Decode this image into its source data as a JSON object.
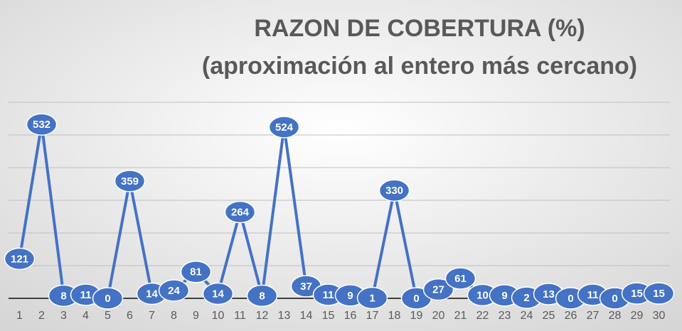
{
  "chart_data": {
    "type": "line",
    "title": "RAZON DE COBERTURA (%)",
    "subtitle": "(aproximación al entero más cercano)",
    "categories": [
      "1",
      "2",
      "3",
      "4",
      "5",
      "6",
      "7",
      "8",
      "9",
      "10",
      "11",
      "12",
      "13",
      "14",
      "15",
      "16",
      "17",
      "18",
      "19",
      "20",
      "21",
      "22",
      "23",
      "24",
      "25",
      "26",
      "27",
      "28",
      "29",
      "30"
    ],
    "series": [
      {
        "name": "Razon de cobertura",
        "color": "#4472c4",
        "values": [
          121,
          532,
          8,
          11,
          0,
          359,
          14,
          24,
          81,
          14,
          264,
          8,
          524,
          37,
          11,
          9,
          1,
          330,
          0,
          27,
          61,
          10,
          9,
          2,
          13,
          0,
          11,
          0,
          15,
          15
        ]
      }
    ],
    "ylim": [
      0,
      600
    ],
    "yticks": [
      0,
      100,
      200,
      300,
      400,
      500,
      600
    ],
    "grid": true
  }
}
